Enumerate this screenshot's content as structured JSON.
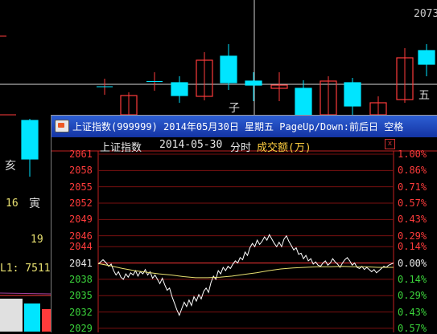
{
  "background": {
    "labels": {
      "top_right_number": "2073",
      "hai": "亥",
      "num_16": "16",
      "yin": "寅",
      "num_19": "19",
      "l1": "L1: 7511",
      "zi": "子",
      "wu": "五"
    },
    "colors": {
      "up": "#ff3b3b",
      "down": "#00e5ff",
      "ma": "#ffffff"
    }
  },
  "window": {
    "title": "上证指数(999999) 2014年05月30日 星期五 PageUp/Down:前后日 空格"
  },
  "chart": {
    "index_name": "上证指数",
    "date": "2014-05-30",
    "mode": "分时",
    "volume_label": "成交额(万)",
    "close_button": "x"
  },
  "chart_data": {
    "type": "line",
    "title": "上证指数 2014-05-30 分时",
    "price_ticks": [
      "2061",
      "2058",
      "2055",
      "2052",
      "2049",
      "2046",
      "2044",
      "2041",
      "2038",
      "2035",
      "2032",
      "2029"
    ],
    "percent_ticks": [
      "1.00%",
      "0.86%",
      "0.71%",
      "0.57%",
      "0.43%",
      "0.29%",
      "0.14%",
      "0.00%",
      "0.14%",
      "0.29%",
      "0.43%",
      "0.57%"
    ],
    "ylim": [
      2028.4,
      2061.0
    ],
    "prev_close": 2040.6,
    "series": [
      {
        "color": "#ffffff",
        "x": [
          0,
          3,
          6,
          10,
          13,
          16,
          19,
          22,
          25,
          28,
          31,
          34,
          37,
          40,
          43,
          46,
          49,
          52,
          55,
          58,
          61,
          64,
          67,
          70,
          73,
          76,
          79,
          82,
          85,
          88,
          91,
          94,
          97,
          100,
          103,
          106,
          109,
          112,
          115,
          118,
          121,
          124,
          127,
          130,
          133,
          136,
          139,
          142,
          145,
          148,
          151,
          154,
          157,
          160,
          163,
          166,
          169,
          172,
          175,
          178,
          181,
          184,
          187,
          190,
          193,
          196,
          199,
          202,
          205,
          208,
          211,
          214,
          217,
          220,
          223,
          226,
          229,
          232,
          235,
          238,
          241,
          244,
          247,
          250,
          253,
          256,
          259,
          262,
          265,
          268,
          271,
          274,
          277,
          280,
          283,
          286,
          289,
          292,
          295,
          298,
          301,
          304,
          307,
          310,
          313,
          316,
          319,
          322,
          325,
          328,
          331,
          334,
          337,
          340,
          343,
          346,
          349,
          352,
          355,
          358,
          361,
          364
        ],
        "values": [
          2040.8,
          2041.2,
          2041.6,
          2041.0,
          2040.4,
          2040.8,
          2039.6,
          2038.8,
          2039.4,
          2038.4,
          2038.0,
          2039.0,
          2038.4,
          2039.2,
          2038.8,
          2039.6,
          2038.6,
          2039.4,
          2039.0,
          2039.8,
          2038.8,
          2039.4,
          2038.2,
          2038.8,
          2038.0,
          2037.2,
          2038.2,
          2037.0,
          2036.0,
          2036.4,
          2034.8,
          2033.6,
          2032.4,
          2031.4,
          2032.6,
          2033.8,
          2033.0,
          2034.2,
          2033.2,
          2034.8,
          2034.0,
          2035.2,
          2034.4,
          2035.8,
          2036.4,
          2035.6,
          2037.4,
          2038.6,
          2038.0,
          2039.6,
          2039.0,
          2040.2,
          2039.6,
          2040.4,
          2040.0,
          2040.8,
          2041.4,
          2041.0,
          2042.0,
          2041.6,
          2043.0,
          2042.4,
          2043.8,
          2044.6,
          2044.0,
          2045.2,
          2044.4,
          2045.0,
          2045.8,
          2045.2,
          2046.2,
          2045.4,
          2044.6,
          2044.0,
          2044.8,
          2044.0,
          2045.4,
          2046.0,
          2045.0,
          2044.2,
          2043.4,
          2043.8,
          2042.6,
          2042.8,
          2041.8,
          2042.4,
          2041.4,
          2041.8,
          2040.8,
          2041.2,
          2040.6,
          2040.4,
          2041.0,
          2041.4,
          2040.6,
          2041.0,
          2041.8,
          2041.2,
          2040.8,
          2040.2,
          2041.0,
          2041.6,
          2042.0,
          2041.4,
          2040.6,
          2041.0,
          2040.2,
          2040.0,
          2040.4,
          2039.8,
          2040.2,
          2039.8,
          2039.4,
          2039.8,
          2039.2,
          2039.6,
          2040.0,
          2040.4,
          2040.2,
          2040.6,
          2040.8,
          2041.0
        ]
      },
      {
        "color": "#e8e070",
        "x": [
          0,
          15,
          30,
          45,
          60,
          75,
          90,
          105,
          120,
          135,
          150,
          165,
          180,
          195,
          210,
          225,
          240,
          255,
          270,
          285,
          300,
          315,
          330,
          345,
          364
        ],
        "values": [
          2040.9,
          2040.5,
          2040.0,
          2039.6,
          2039.3,
          2039.0,
          2038.8,
          2038.5,
          2038.3,
          2038.3,
          2038.4,
          2038.6,
          2038.9,
          2039.2,
          2039.6,
          2039.9,
          2040.1,
          2040.2,
          2040.3,
          2040.3,
          2040.4,
          2040.3,
          2040.3,
          2040.2,
          2040.2
        ]
      }
    ]
  }
}
